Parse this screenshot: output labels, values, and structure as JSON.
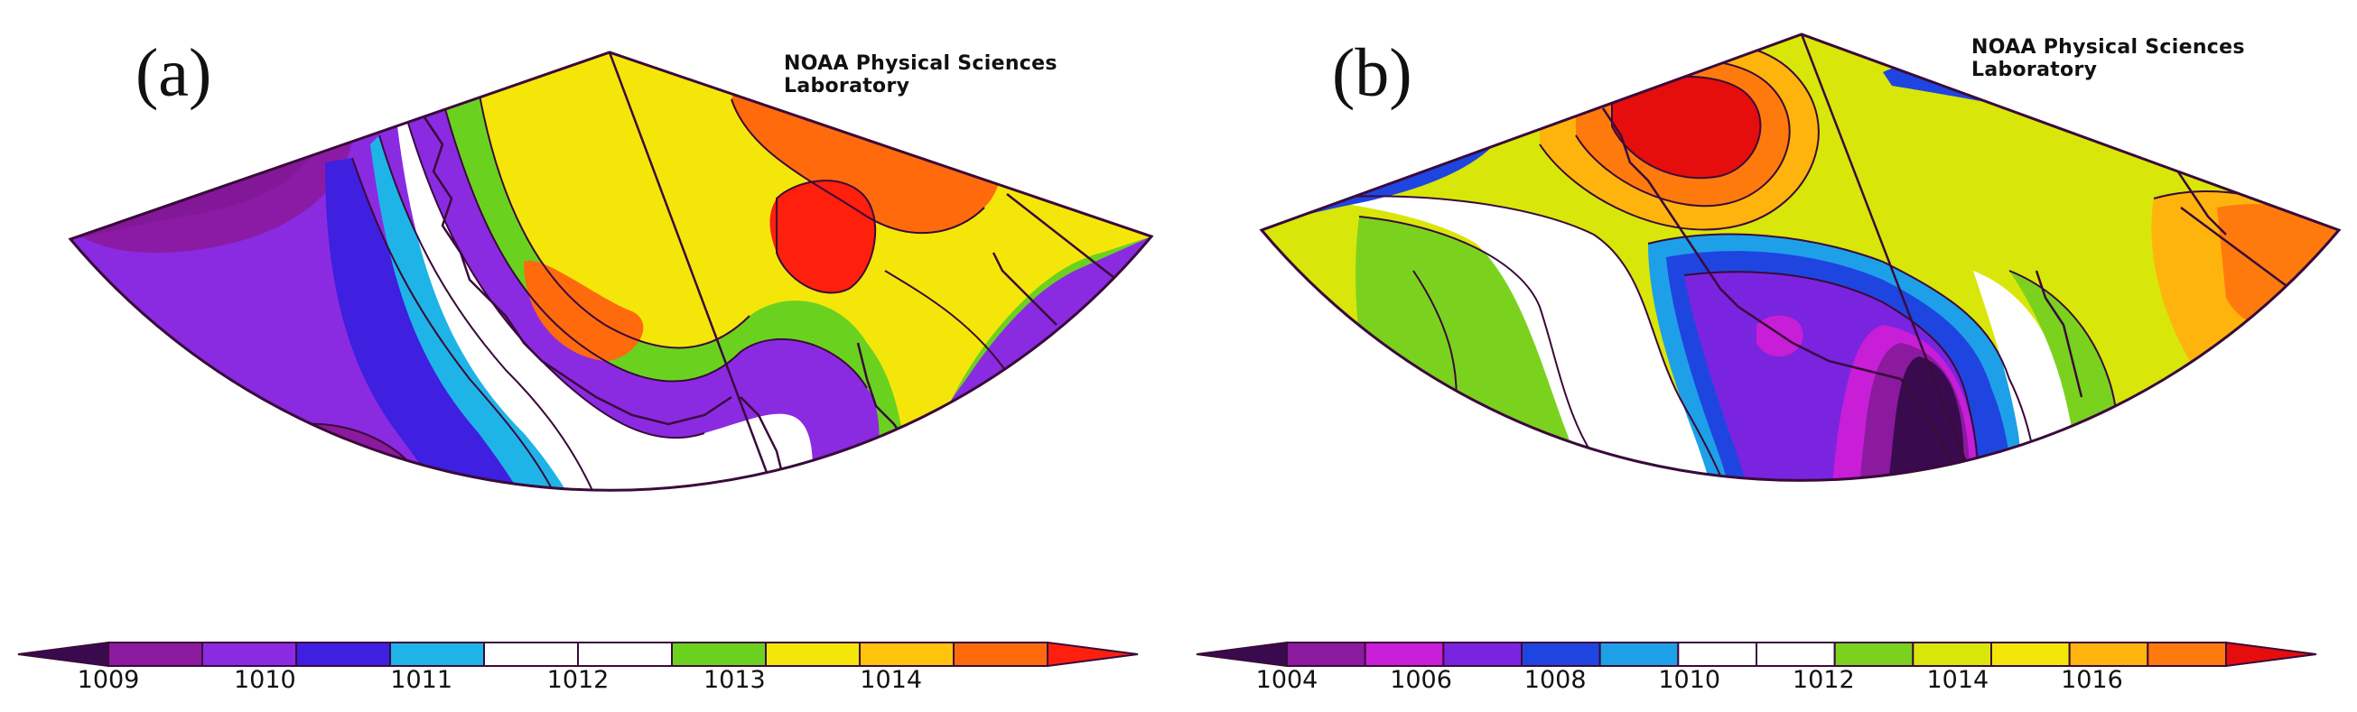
{
  "panels": [
    {
      "id": "a",
      "label": "(a)",
      "credit": "NOAA Physical Sciences Laboratory",
      "colorbar": {
        "ticks": [
          "1009",
          "1010",
          "1011",
          "1012",
          "1013",
          "1014"
        ],
        "colors": [
          "#3a0a4f",
          "#8b1a9e",
          "#8a2be2",
          "#3f1fe0",
          "#1eb4e8",
          "#ffffff",
          "#ffffff",
          "#6ad21f",
          "#f5e60a",
          "#ffc20d",
          "#ff6a0d",
          "#ff1f0d"
        ]
      }
    },
    {
      "id": "b",
      "label": "(b)",
      "credit": "NOAA Physical Sciences Laboratory",
      "colorbar": {
        "ticks": [
          "1004",
          "1006",
          "1008",
          "1010",
          "1012",
          "1014",
          "1016"
        ],
        "colors": [
          "#3a0a4f",
          "#8b1a9e",
          "#c81ed8",
          "#7a24e0",
          "#1f45e0",
          "#1ea0e8",
          "#ffffff",
          "#ffffff",
          "#7ad21f",
          "#d9e60a",
          "#f5e60a",
          "#ffb40d",
          "#ff7a0d",
          "#e60d0d"
        ]
      }
    }
  ],
  "colors": {
    "outline": "#3a0a3a",
    "coast": "#3a0a3a"
  }
}
